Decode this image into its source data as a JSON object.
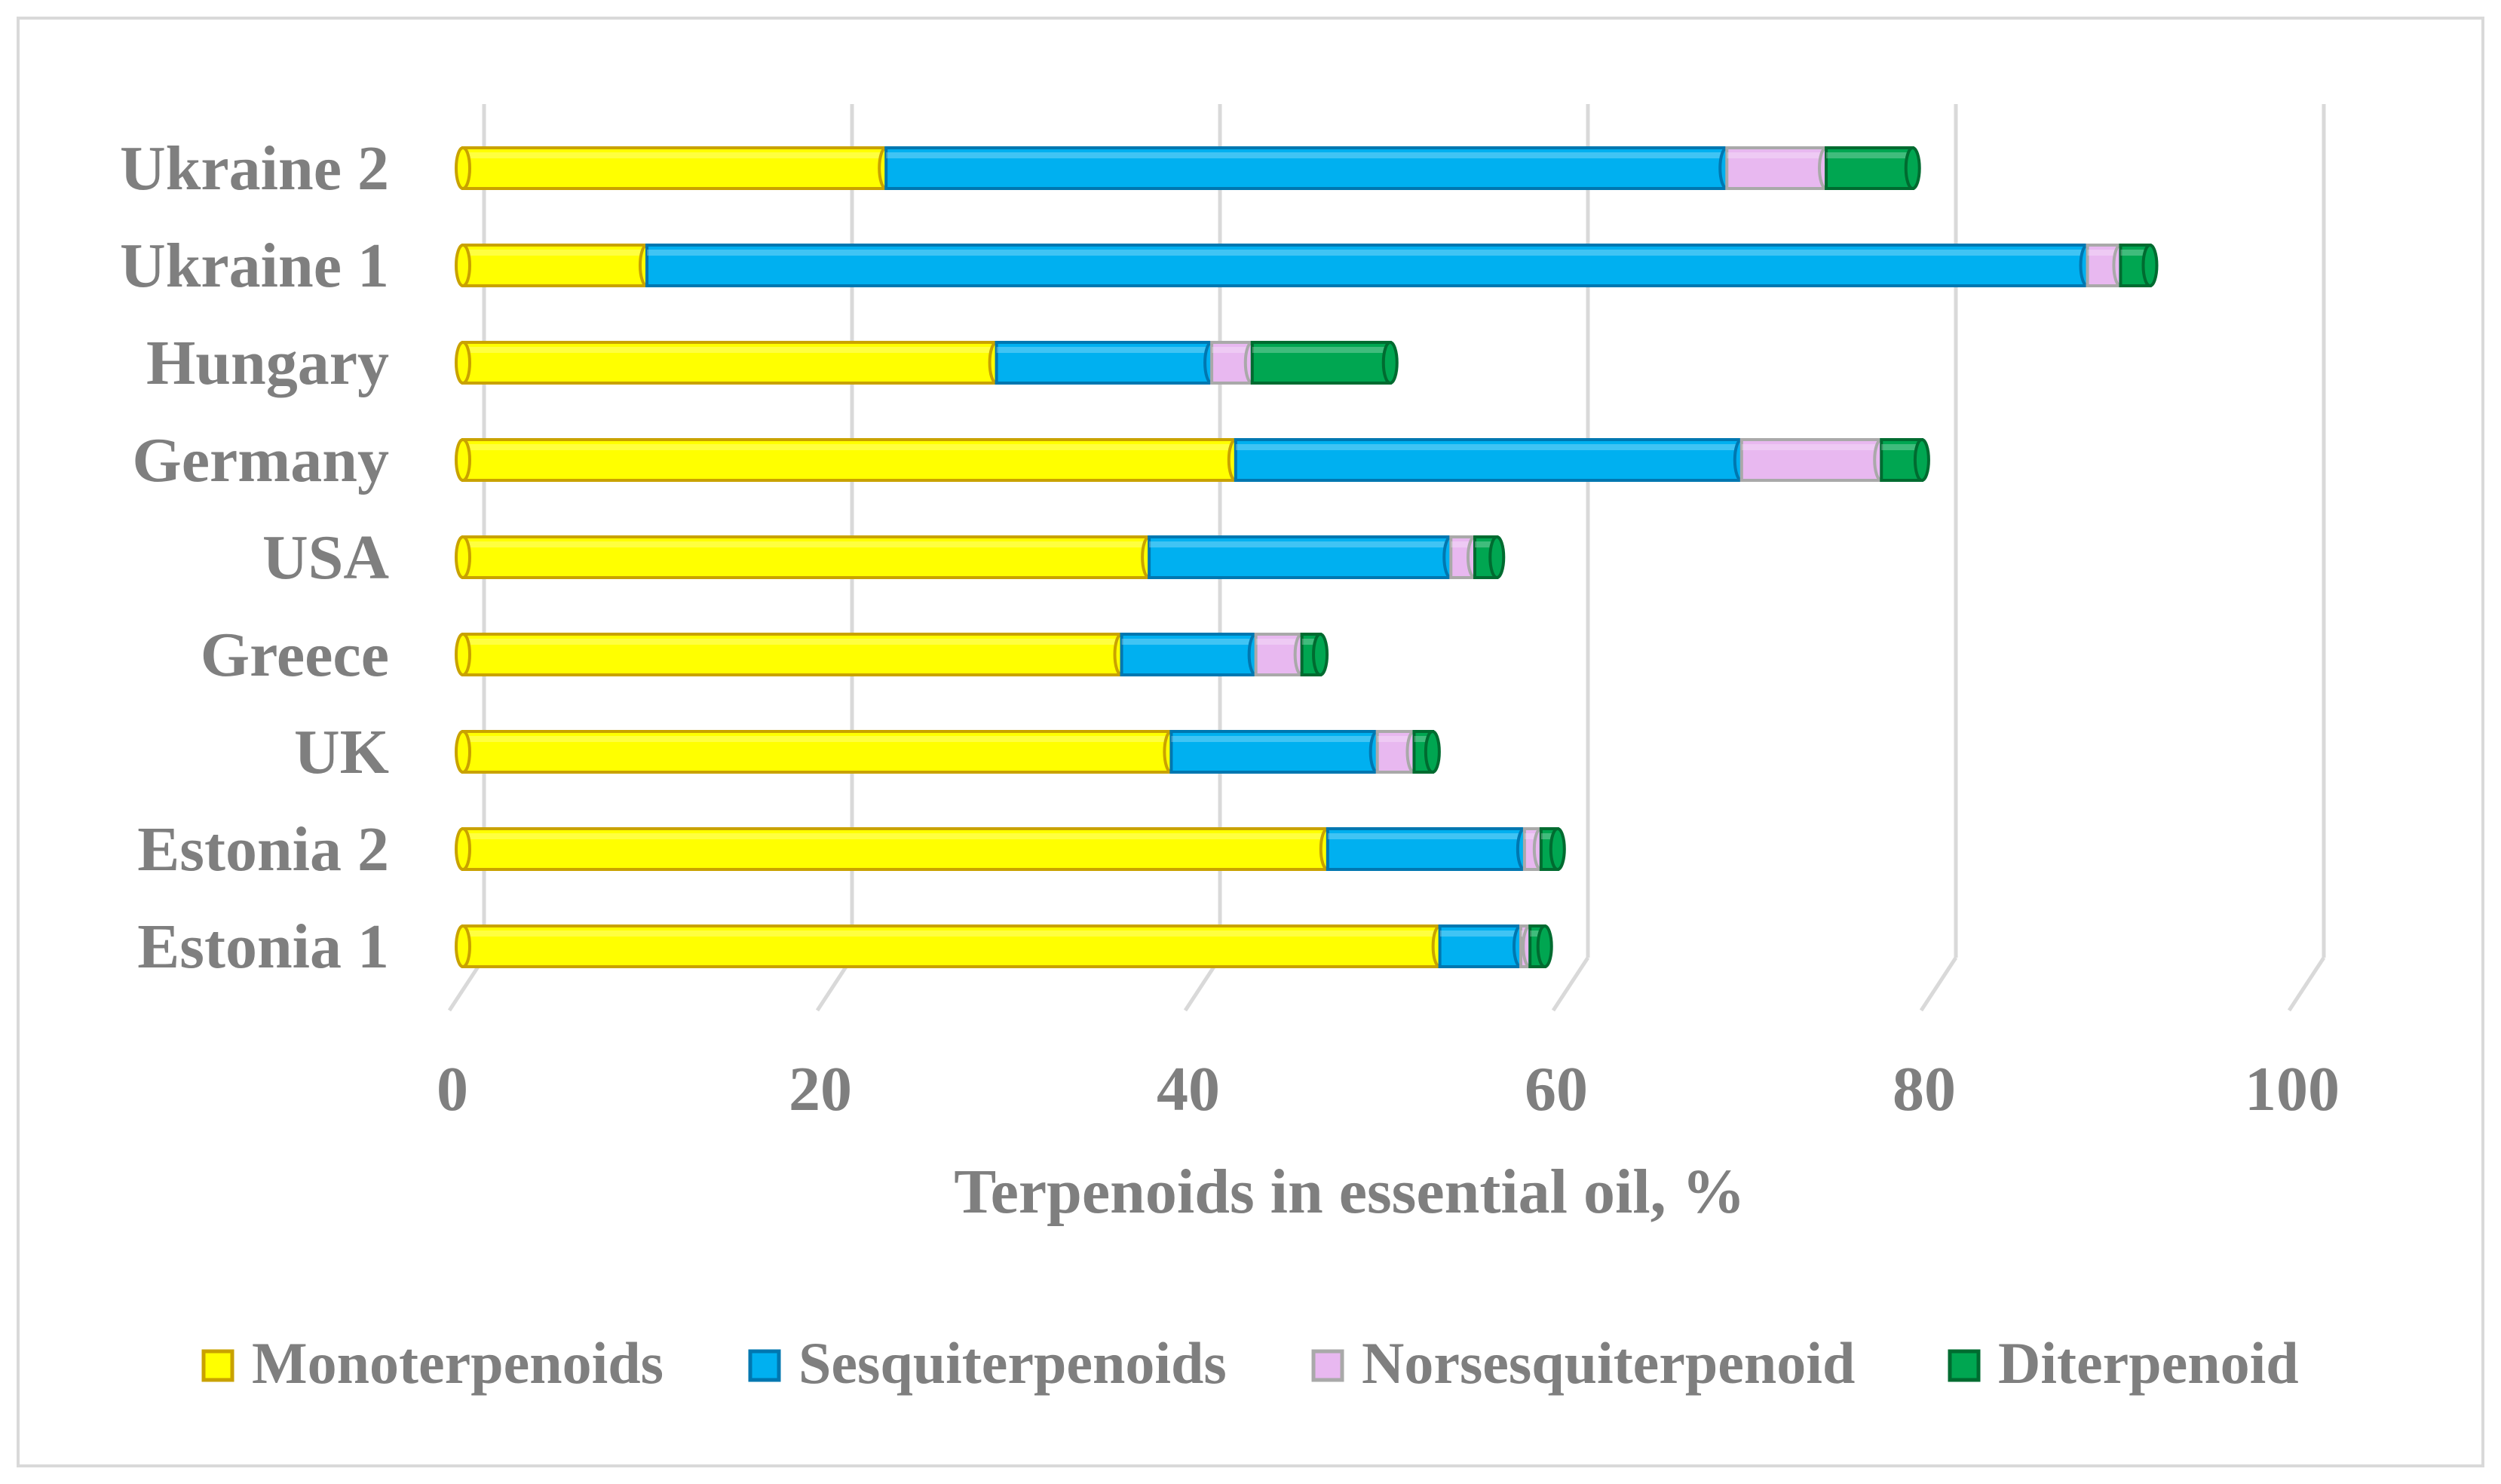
{
  "chart_data": {
    "type": "bar",
    "orientation": "horizontal",
    "stacked": true,
    "categories": [
      "Estonia 1",
      "Estonia 2",
      "UK",
      "Greece",
      "USA",
      "Germany",
      "Hungary",
      "Ukraine 1",
      "Ukraine 2"
    ],
    "series": [
      {
        "name": "Monoterpenoids",
        "color": "#ffff00",
        "edge": "#c9a200",
        "values": [
          53.1,
          47,
          38.5,
          35.8,
          37.3,
          42,
          29,
          10,
          23
        ]
      },
      {
        "name": "Sesquiterpenoids",
        "color": "#00b0f0",
        "edge": "#0077b0",
        "values": [
          4.4,
          10.7,
          11.2,
          7.3,
          16.4,
          27.5,
          11.7,
          78.3,
          45.7
        ]
      },
      {
        "name": "Norsesquiterpenoid",
        "color": "#e8b8f0",
        "edge": "#a9a9a9",
        "values": [
          0.5,
          0.9,
          2.0,
          2.5,
          1.3,
          7.6,
          2.2,
          1.8,
          5.4
        ]
      },
      {
        "name": "Diterpenoid",
        "color": "#00a651",
        "edge": "#006b30",
        "values": [
          0.8,
          0.9,
          1.0,
          1.0,
          1.2,
          2.2,
          7.5,
          1.6,
          4.7
        ]
      }
    ],
    "x_ticks": [
      "0",
      "20",
      "40",
      "60",
      "80",
      "100"
    ],
    "xlim": [
      0,
      100
    ],
    "xlabel": "Terpenoids in essential oil, %",
    "ylabel": "",
    "grid": "vertical",
    "legend_position": "bottom"
  }
}
